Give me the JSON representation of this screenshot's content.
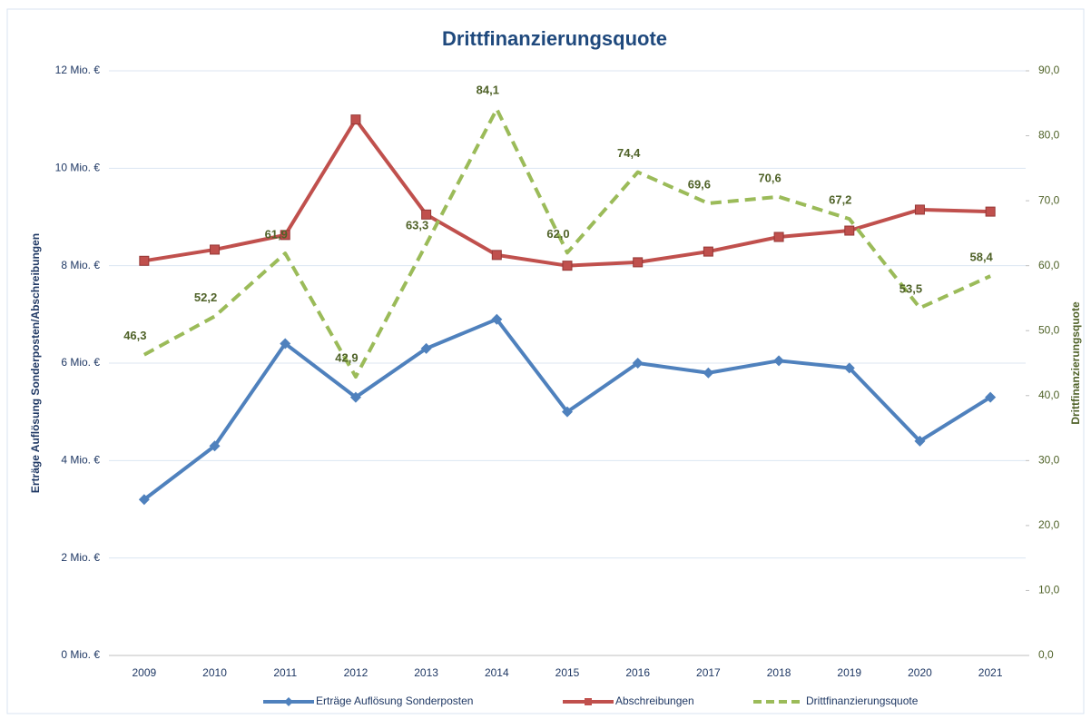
{
  "chart_data": {
    "type": "line",
    "title": "Drittfinanzierungsquote",
    "ylabel": "Erträge Auflösung Sonderposten/Abschreibungen",
    "y2label": "Drittfinanzierungsquote",
    "categories": [
      "2009",
      "2010",
      "2011",
      "2012",
      "2013",
      "2014",
      "2015",
      "2016",
      "2017",
      "2018",
      "2019",
      "2020",
      "2021"
    ],
    "ylim": [
      0,
      12
    ],
    "yticks": [
      {
        "value": 0,
        "label": "0 Mio. €"
      },
      {
        "value": 2,
        "label": "2 Mio. €"
      },
      {
        "value": 4,
        "label": "4 Mio. €"
      },
      {
        "value": 6,
        "label": "6 Mio. €"
      },
      {
        "value": 8,
        "label": "8 Mio. €"
      },
      {
        "value": 10,
        "label": "10 Mio. €"
      },
      {
        "value": 12,
        "label": "12 Mio. €"
      }
    ],
    "y2lim": [
      0,
      90
    ],
    "y2ticks": [
      {
        "value": 0,
        "label": "0,0"
      },
      {
        "value": 10,
        "label": "10,0"
      },
      {
        "value": 20,
        "label": "20,0"
      },
      {
        "value": 30,
        "label": "30,0"
      },
      {
        "value": 40,
        "label": "40,0"
      },
      {
        "value": 50,
        "label": "50,0"
      },
      {
        "value": 60,
        "label": "60,0"
      },
      {
        "value": 70,
        "label": "70,0"
      },
      {
        "value": 80,
        "label": "80,0"
      },
      {
        "value": 90,
        "label": "90,0"
      }
    ],
    "grid": true,
    "legend": "bottom",
    "series": [
      {
        "name": "Erträge Auflösung Sonderposten",
        "color": "#4f81bd",
        "marker": "diamond",
        "values": [
          3.2,
          4.3,
          6.4,
          5.3,
          6.3,
          6.9,
          5.0,
          6.0,
          5.8,
          6.05,
          5.9,
          4.4,
          5.3
        ]
      },
      {
        "name": "Abschreibungen",
        "color": "#c0504d",
        "marker": "square",
        "values": [
          8.1,
          8.33,
          8.63,
          11.0,
          9.05,
          8.22,
          8.0,
          8.07,
          8.29,
          8.59,
          8.72,
          9.15,
          9.11
        ]
      },
      {
        "name": "Drittfinanzierungsquote",
        "color": "#9bbb59",
        "axis": "y2",
        "dashed": true,
        "values": [
          46.3,
          52.2,
          61.9,
          42.9,
          63.3,
          84.1,
          62.0,
          74.4,
          69.6,
          70.6,
          67.2,
          53.5,
          58.4
        ],
        "value_labels": [
          "46,3",
          "52,2",
          "61,9",
          "42,9",
          "63,3",
          "84,1",
          "62,0",
          "74,4",
          "69,6",
          "70,6",
          "67,2",
          "53,5",
          "58,4"
        ]
      }
    ]
  }
}
